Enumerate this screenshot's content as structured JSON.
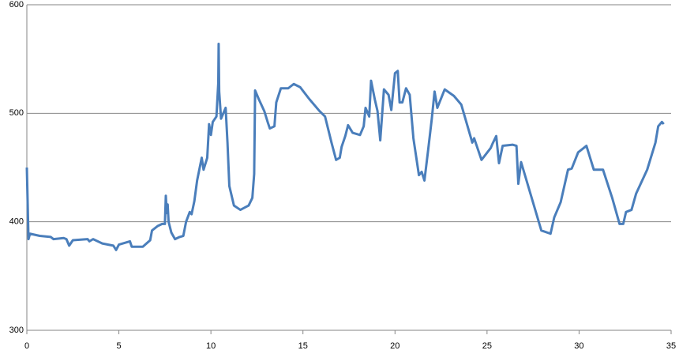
{
  "chart_data": {
    "type": "line",
    "color": "#4a7ebb",
    "grid": true,
    "xlim": [
      0,
      35
    ],
    "xticks": [
      0,
      5,
      10,
      15,
      20,
      25,
      30,
      35
    ],
    "ylim": [
      300,
      600
    ],
    "yticks": [
      300,
      400,
      500,
      600
    ],
    "x": [
      0,
      0.09,
      0.17,
      0.7,
      1.3,
      1.45,
      2.0,
      2.15,
      2.3,
      2.5,
      3.3,
      3.4,
      3.6,
      4.1,
      4.7,
      4.85,
      5.0,
      5.6,
      5.7,
      6.3,
      6.5,
      6.7,
      6.8,
      7.1,
      7.35,
      7.5,
      7.55,
      7.6,
      7.65,
      7.7,
      7.85,
      8.05,
      8.3,
      8.5,
      8.65,
      8.85,
      8.95,
      9.1,
      9.25,
      9.5,
      9.6,
      9.8,
      9.9,
      10.0,
      10.1,
      10.3,
      10.4,
      10.42,
      10.45,
      10.55,
      10.8,
      10.9,
      11.0,
      11.25,
      11.6,
      12.05,
      12.25,
      12.35,
      12.4,
      12.6,
      12.9,
      13.1,
      13.2,
      13.45,
      13.55,
      13.8,
      14.2,
      14.5,
      14.85,
      15.35,
      15.9,
      16.2,
      16.55,
      16.8,
      17.0,
      17.1,
      17.3,
      17.45,
      17.7,
      18.1,
      18.3,
      18.4,
      18.6,
      18.7,
      18.9,
      19.05,
      19.2,
      19.4,
      19.65,
      19.8,
      20.0,
      20.15,
      20.25,
      20.4,
      20.6,
      20.8,
      21.0,
      21.3,
      21.45,
      21.6,
      21.8,
      22.0,
      22.15,
      22.3,
      22.7,
      23.2,
      23.6,
      24.2,
      24.3,
      24.7,
      25.2,
      25.3,
      25.5,
      25.65,
      25.85,
      26.4,
      26.6,
      26.7,
      26.85,
      27.95,
      28.45,
      28.65,
      29.0,
      29.4,
      29.6,
      29.95,
      30.4,
      30.8,
      31.3,
      31.8,
      32.2,
      32.4,
      32.55,
      32.85,
      33.1,
      33.7,
      34.15,
      34.3,
      34.5,
      34.6
    ],
    "values": [
      450,
      384,
      389,
      387,
      386,
      384,
      385,
      384,
      378,
      383,
      384,
      382,
      384,
      380,
      378,
      374,
      379,
      382,
      377,
      377,
      380,
      383,
      392,
      396,
      398,
      398,
      424,
      408,
      416,
      400,
      390,
      384,
      386,
      387,
      400,
      409,
      407,
      419,
      438,
      459,
      448,
      459,
      490,
      480,
      492,
      497,
      528,
      564,
      520,
      495,
      505,
      473,
      433,
      415,
      411,
      415,
      422,
      444,
      521,
      513,
      502,
      491,
      486,
      488,
      510,
      523,
      523,
      527,
      524,
      513,
      502,
      497,
      473,
      457,
      459,
      469,
      479,
      489,
      482,
      480,
      488,
      505,
      497,
      530,
      513,
      502,
      475,
      522,
      517,
      503,
      537,
      539,
      510,
      510,
      523,
      517,
      477,
      443,
      446,
      438,
      466,
      495,
      520,
      505,
      522,
      516,
      508,
      473,
      477,
      457,
      468,
      472,
      479,
      454,
      470,
      471,
      470,
      435,
      455,
      392,
      389,
      404,
      418,
      448,
      449,
      464,
      470,
      448,
      448,
      422,
      398,
      398,
      409,
      411,
      426,
      448,
      473,
      488,
      492,
      490
    ]
  }
}
